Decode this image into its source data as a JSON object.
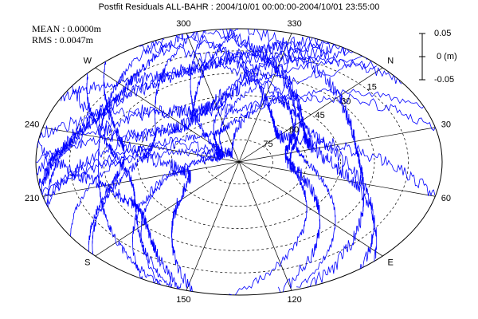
{
  "header": {
    "title": "Postfit Residuals ALL-BAHR : 2004/10/01 00:00:00-2004/10/01 23:55:00"
  },
  "stats": {
    "mean": "MEAN : 0.0000m",
    "rms": "RMS : 0.0047m"
  },
  "scale": {
    "labels": [
      "0.05",
      "0 (m)",
      "-0.05"
    ]
  },
  "azimuth_labels": [
    "N",
    "30",
    "60",
    "E",
    "120",
    "150",
    "S",
    "210",
    "240",
    "W",
    "300",
    "330"
  ],
  "elevation_labels": [
    "15",
    "30",
    "45",
    "60",
    "75"
  ]
}
